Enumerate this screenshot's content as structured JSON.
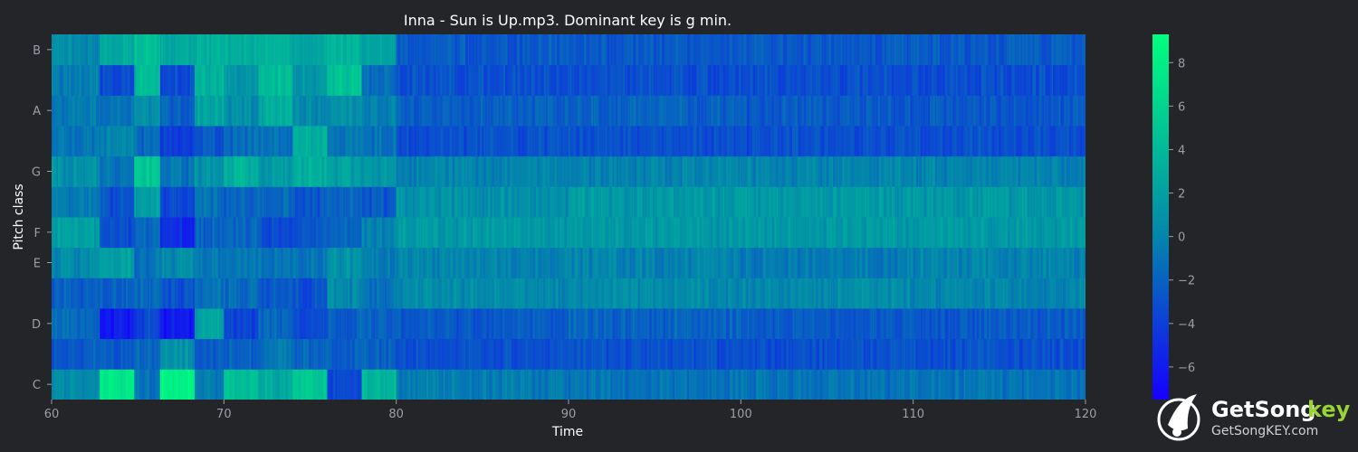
{
  "colors": {
    "background": "#232529",
    "text": "#ffffff",
    "tick_text": "#9b9ea3",
    "colormap_low": "#1600ff",
    "colormap_mid": "#0486ab",
    "colormap_high": "#00ff7f",
    "watermark_accent": "#9ad336"
  },
  "watermark": {
    "name_prefix": "GetSong",
    "name_suffix": "key",
    "url": "GetSongKEY.com",
    "logo_icon": "bird-note-logo-icon"
  },
  "chart_data": {
    "type": "heatmap",
    "title": "Inna - Sun is Up.mp3. Dominant key is g min.",
    "xlabel": "Time",
    "ylabel": "Pitch class",
    "xlim": [
      60,
      120
    ],
    "x_ticks": [
      60,
      70,
      80,
      90,
      100,
      110,
      120
    ],
    "rows": [
      "C",
      "C#",
      "D",
      "D#",
      "E",
      "F",
      "F#",
      "G",
      "G#",
      "A",
      "A#",
      "B"
    ],
    "y_tick_labels": [
      "C",
      "D",
      "E",
      "F",
      "G",
      "A",
      "B"
    ],
    "y_tick_rows": [
      0,
      2,
      4,
      5,
      7,
      9,
      11
    ],
    "grid": false,
    "colorbar": {
      "vmin": -7.5,
      "vmax": 9.3,
      "ticks": [
        -6,
        -4,
        -2,
        0,
        2,
        4,
        6,
        8
      ],
      "tick_labels": [
        "−6",
        "−4",
        "−2",
        "0",
        "2",
        "4",
        "6",
        "8"
      ]
    },
    "segments": [
      {
        "t0": 60.0,
        "t1": 62.8,
        "values": [
          0.5,
          -2.5,
          -1.5,
          -2.0,
          0.5,
          2.0,
          -0.5,
          1.0,
          -1.0,
          -0.5,
          -0.5,
          0.5
        ]
      },
      {
        "t0": 62.8,
        "t1": 64.8,
        "values": [
          7.5,
          -2.5,
          -6.0,
          -2.0,
          2.0,
          -3.0,
          -3.0,
          -1.0,
          0.0,
          -1.0,
          -3.5,
          2.5
        ]
      },
      {
        "t0": 64.8,
        "t1": 66.3,
        "values": [
          -1.0,
          -1.5,
          -3.5,
          -1.5,
          -1.0,
          -1.5,
          2.0,
          5.0,
          -1.5,
          0.5,
          4.0,
          4.5
        ]
      },
      {
        "t0": 66.3,
        "t1": 68.3,
        "values": [
          8.5,
          1.0,
          -6.0,
          -3.0,
          0.5,
          -5.0,
          -3.5,
          -1.0,
          -4.0,
          -2.0,
          -3.5,
          2.5
        ]
      },
      {
        "t0": 68.3,
        "t1": 70.0,
        "values": [
          -0.5,
          -2.0,
          2.0,
          -1.0,
          -1.0,
          -2.0,
          -1.0,
          1.0,
          -2.5,
          2.5,
          3.5,
          3.0
        ]
      },
      {
        "t0": 70.0,
        "t1": 72.0,
        "values": [
          4.5,
          -2.0,
          -4.0,
          -1.5,
          -1.0,
          -2.0,
          -2.0,
          3.5,
          -1.5,
          0.5,
          1.0,
          3.0
        ]
      },
      {
        "t0": 72.0,
        "t1": 74.0,
        "values": [
          3.0,
          -1.0,
          -1.5,
          -2.5,
          -1.0,
          -3.0,
          -1.5,
          1.5,
          -1.0,
          3.0,
          4.0,
          3.5
        ]
      },
      {
        "t0": 74.0,
        "t1": 76.0,
        "values": [
          5.0,
          -1.5,
          -3.5,
          -3.0,
          -1.0,
          -2.5,
          -2.5,
          3.0,
          3.0,
          0.5,
          1.5,
          2.5
        ]
      },
      {
        "t0": 76.0,
        "t1": 78.0,
        "values": [
          -3.5,
          -2.0,
          -2.0,
          0.5,
          1.0,
          -2.0,
          -1.5,
          2.0,
          -0.5,
          1.0,
          4.5,
          3.5
        ]
      },
      {
        "t0": 78.0,
        "t1": 80.0,
        "values": [
          3.5,
          -2.0,
          -2.0,
          -1.0,
          -0.5,
          0.0,
          -2.5,
          1.5,
          -1.0,
          0.0,
          -1.0,
          2.0
        ]
      },
      {
        "t0": 80.0,
        "t1": 90.0,
        "values": [
          -0.5,
          -3.0,
          -2.5,
          0.5,
          0.0,
          1.5,
          1.0,
          0.0,
          -3.0,
          -2.0,
          -3.0,
          -2.5
        ]
      },
      {
        "t0": 90.0,
        "t1": 100.0,
        "values": [
          -1.0,
          -3.0,
          -2.0,
          0.5,
          0.0,
          1.5,
          1.5,
          0.0,
          -3.0,
          -2.0,
          -3.0,
          -2.5
        ]
      },
      {
        "t0": 100.0,
        "t1": 110.0,
        "values": [
          -1.0,
          -3.0,
          -2.5,
          0.5,
          -0.5,
          1.5,
          1.5,
          0.0,
          -3.0,
          -2.5,
          -3.0,
          -2.5
        ]
      },
      {
        "t0": 110.0,
        "t1": 120.0,
        "values": [
          -1.0,
          -3.0,
          -2.5,
          0.0,
          0.0,
          1.5,
          1.5,
          0.0,
          -3.0,
          -2.5,
          -3.0,
          -2.5
        ]
      }
    ]
  }
}
